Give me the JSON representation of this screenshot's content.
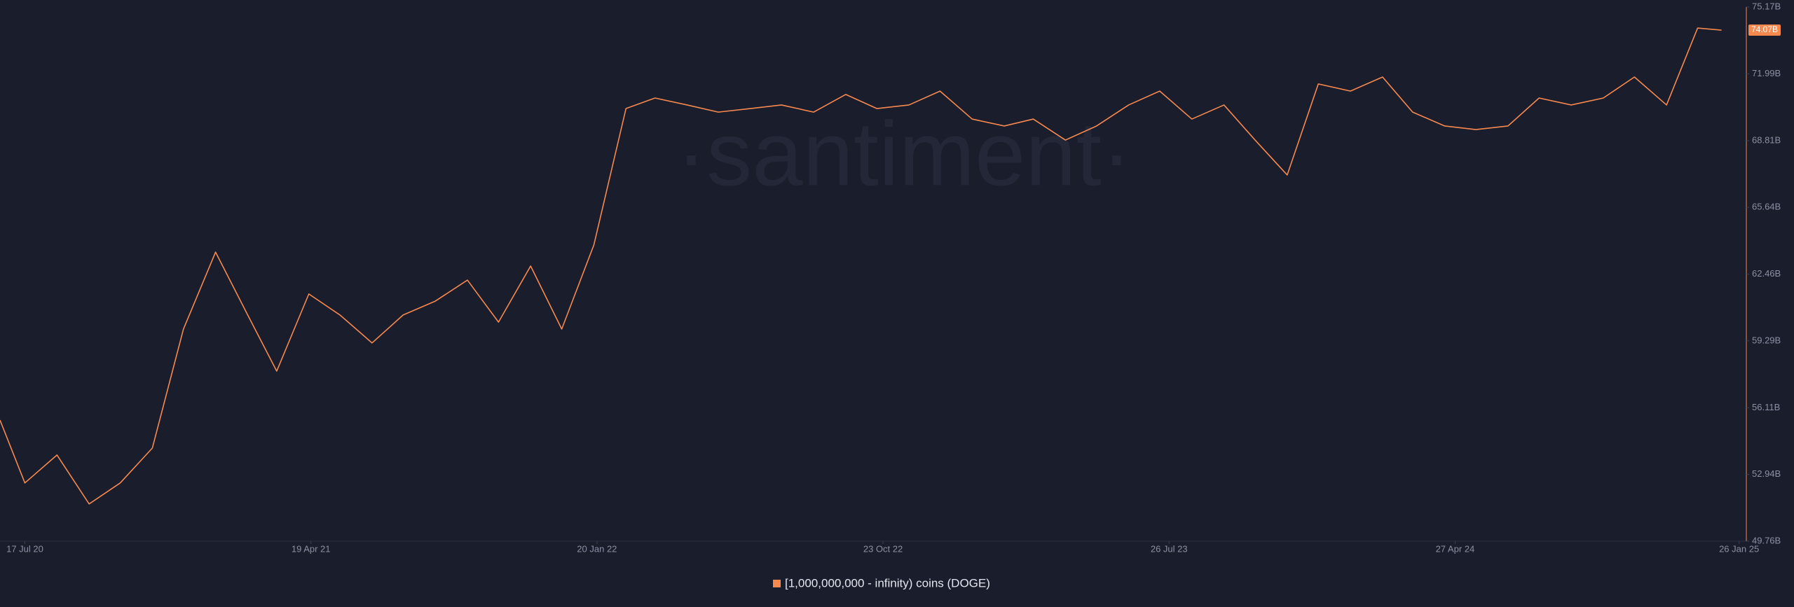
{
  "chart_data": {
    "type": "line",
    "watermark": "·santiment·",
    "x": [
      "2020-06-23",
      "2020-07-17",
      "2020-08-17",
      "2020-09-17",
      "2020-10-17",
      "2020-11-17",
      "2020-12-17",
      "2021-01-17",
      "2021-02-17",
      "2021-03-17",
      "2021-04-17",
      "2021-05-17",
      "2021-06-17",
      "2021-07-17",
      "2021-08-17",
      "2021-09-17",
      "2021-10-17",
      "2021-11-17",
      "2021-12-17",
      "2022-01-17",
      "2022-02-17",
      "2022-03-17",
      "2022-04-17",
      "2022-05-17",
      "2022-06-17",
      "2022-07-17",
      "2022-08-17",
      "2022-09-17",
      "2022-10-17",
      "2022-11-17",
      "2022-12-17",
      "2023-01-17",
      "2023-02-17",
      "2023-03-17",
      "2023-04-17",
      "2023-05-17",
      "2023-06-17",
      "2023-07-17",
      "2023-08-17",
      "2023-09-17",
      "2023-10-17",
      "2023-11-17",
      "2023-12-17",
      "2024-01-17",
      "2024-02-17",
      "2024-03-17",
      "2024-04-17",
      "2024-05-17",
      "2024-06-17",
      "2024-07-17",
      "2024-08-17",
      "2024-09-17",
      "2024-10-17",
      "2024-11-17",
      "2024-12-17",
      "2025-01-09"
    ],
    "series": [
      {
        "name": "[1,000,000,000 - infinity) coins (DOGE)",
        "color": "#f7894f",
        "values": [
          55.52,
          52.53,
          53.86,
          51.53,
          52.53,
          54.19,
          59.85,
          63.51,
          60.52,
          57.85,
          61.52,
          60.52,
          59.19,
          60.52,
          61.18,
          62.18,
          60.18,
          62.85,
          59.85,
          63.85,
          70.34,
          70.84,
          70.51,
          70.17,
          70.34,
          70.51,
          70.17,
          71.01,
          70.34,
          70.51,
          71.17,
          69.84,
          69.51,
          69.84,
          68.84,
          69.51,
          70.51,
          71.17,
          69.84,
          70.51,
          68.84,
          67.18,
          71.51,
          71.17,
          71.84,
          70.17,
          69.51,
          69.34,
          69.51,
          70.84,
          70.51,
          70.84,
          71.84,
          70.51,
          74.17,
          74.07
        ],
        "last_value_label": "74.07B"
      }
    ],
    "xlim": [
      "2020-06-23",
      "2025-02-02"
    ],
    "xticks": [
      {
        "value": "2020-07-17",
        "label": "17 Jul 20"
      },
      {
        "value": "2021-04-19",
        "label": "19 Apr 21"
      },
      {
        "value": "2022-01-20",
        "label": "20 Jan 22"
      },
      {
        "value": "2022-10-23",
        "label": "23 Oct 22"
      },
      {
        "value": "2023-07-26",
        "label": "26 Jul 23"
      },
      {
        "value": "2024-04-27",
        "label": "27 Apr 24"
      },
      {
        "value": "2025-01-26",
        "label": "26 Jan 25"
      }
    ],
    "ylim": [
      49.76,
      75.17
    ],
    "yticks": [
      {
        "value": 49.76,
        "label": "49.76B"
      },
      {
        "value": 52.94,
        "label": "52.94B"
      },
      {
        "value": 56.11,
        "label": "56.11B"
      },
      {
        "value": 59.29,
        "label": "59.29B"
      },
      {
        "value": 62.46,
        "label": "62.46B"
      },
      {
        "value": 65.64,
        "label": "65.64B"
      },
      {
        "value": 68.81,
        "label": "68.81B"
      },
      {
        "value": 71.99,
        "label": "71.99B"
      },
      {
        "value": 75.17,
        "label": "75.17B"
      }
    ],
    "grid": false
  }
}
